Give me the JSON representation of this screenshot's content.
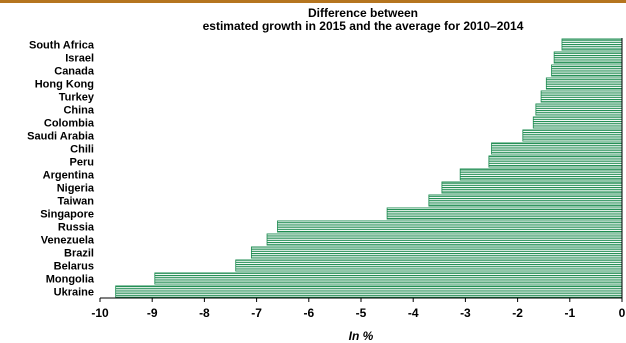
{
  "colors": {
    "top_rule": "#b5751f",
    "bar_line": "#1a8a4e",
    "axis": "#000000"
  },
  "chart_data": {
    "type": "bar",
    "orientation": "horizontal",
    "title_lines": [
      "Difference between",
      "estimated growth in 2015 and the average for 2010–2014"
    ],
    "xlabel": "In %",
    "ylabel": "",
    "xlim": [
      -10,
      0
    ],
    "x_ticks": [
      "-10",
      "-9",
      "-8",
      "-7",
      "-6",
      "-5",
      "-4",
      "-3",
      "-2",
      "-1",
      "0"
    ],
    "grid": false,
    "legend": "none",
    "categories": [
      "South Africa",
      "Israel",
      "Canada",
      "Hong Kong",
      "Turkey",
      "China",
      "Colombia",
      "Saudi Arabia",
      "Chili",
      "Peru",
      "Argentina",
      "Nigeria",
      "Taiwan",
      "Singapore",
      "Russia",
      "Venezuela",
      "Brazil",
      "Belarus",
      "Mongolia",
      "Ukraine"
    ],
    "values": [
      -1.15,
      -1.3,
      -1.35,
      -1.45,
      -1.55,
      -1.65,
      -1.7,
      -1.9,
      -2.5,
      -2.55,
      -3.1,
      -3.45,
      -3.7,
      -4.5,
      -6.6,
      -6.8,
      -7.1,
      -7.4,
      -8.95,
      -9.7
    ]
  }
}
